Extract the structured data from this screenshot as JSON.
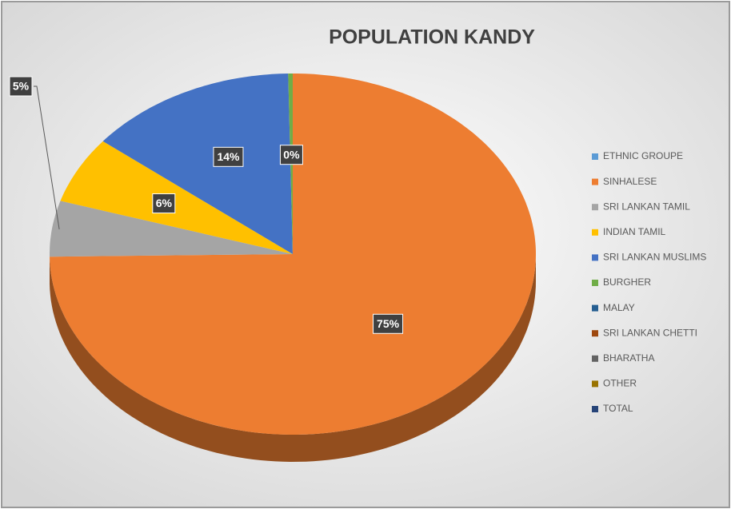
{
  "chart_data": {
    "type": "pie",
    "title": "POPULATION KANDY",
    "categories": [
      "ETHNIC GROUPE",
      "SINHALESE",
      "SRI LANKAN TAMIL",
      "INDIAN TAMIL",
      "SRI LANKAN MUSLIMS",
      "BURGHER",
      "MALAY",
      "SRI LANKAN CHETTI",
      "BHARATHA",
      "OTHER",
      "TOTAL"
    ],
    "values": [
      null,
      75,
      5,
      6,
      14,
      0.3,
      null,
      null,
      null,
      null,
      null
    ],
    "value_labels": [
      null,
      "75%",
      "5%",
      "6%",
      "14%",
      "0%",
      null,
      null,
      null,
      null,
      null
    ],
    "colors": [
      "#5b9bd5",
      "#ed7d31",
      "#a5a5a5",
      "#ffc000",
      "#4472c4",
      "#70ad47",
      "#255e91",
      "#9e480e",
      "#636363",
      "#997300",
      "#264478"
    ],
    "legend": "right"
  }
}
